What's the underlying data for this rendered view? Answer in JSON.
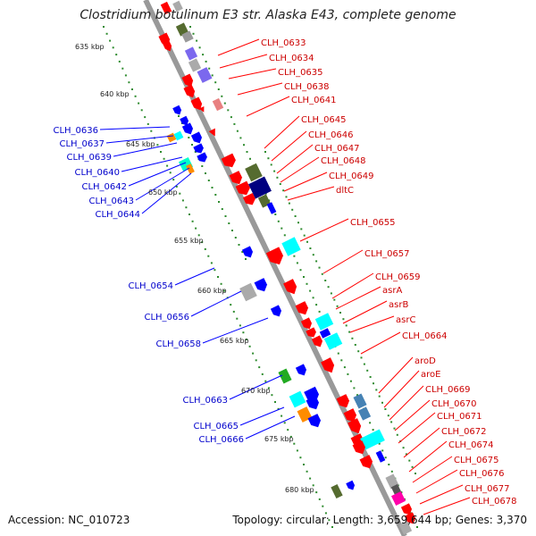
{
  "title": "Clostridium botulinum E3 str. Alaska E43, complete genome",
  "footer": {
    "accession": "Accession: NC_010723",
    "topology": "Topology: circular; Length: 3,659,644 bp; Genes: 3,370"
  },
  "colors": {
    "backbone": "#999999",
    "ticks": "#2e8b2e",
    "right_label": "#cc0000",
    "left_label": "#0000cc",
    "leader_right": "#ff0000",
    "leader_left": "#0000ff"
  },
  "scale_ticks": [
    "635 kbp",
    "640 kbp",
    "645 kbp",
    "650 kbp",
    "655 kbp",
    "660 kbp",
    "665 kbp",
    "670 kbp",
    "675 kbp",
    "680 kbp"
  ],
  "right_labels": [
    "CLH_0633",
    "CLH_0634",
    "CLH_0635",
    "CLH_0638",
    "CLH_0641",
    "CLH_0645",
    "CLH_0646",
    "CLH_0647",
    "CLH_0648",
    "CLH_0649",
    "dltC",
    "CLH_0655",
    "CLH_0657",
    "CLH_0659",
    "asrA",
    "asrB",
    "asrC",
    "CLH_0664",
    "aroD",
    "aroE",
    "CLH_0669",
    "CLH_0670",
    "CLH_0671",
    "CLH_0672",
    "CLH_0674",
    "CLH_0675",
    "CLH_0676",
    "CLH_0677",
    "CLH_0678"
  ],
  "left_labels": [
    "CLH_0636",
    "CLH_0637",
    "CLH_0639",
    "CLH_0640",
    "CLH_0642",
    "CLH_0643",
    "CLH_0644",
    "CLH_0654",
    "CLH_0656",
    "CLH_0658",
    "CLH_0663",
    "CLH_0665",
    "CLH_0666"
  ]
}
